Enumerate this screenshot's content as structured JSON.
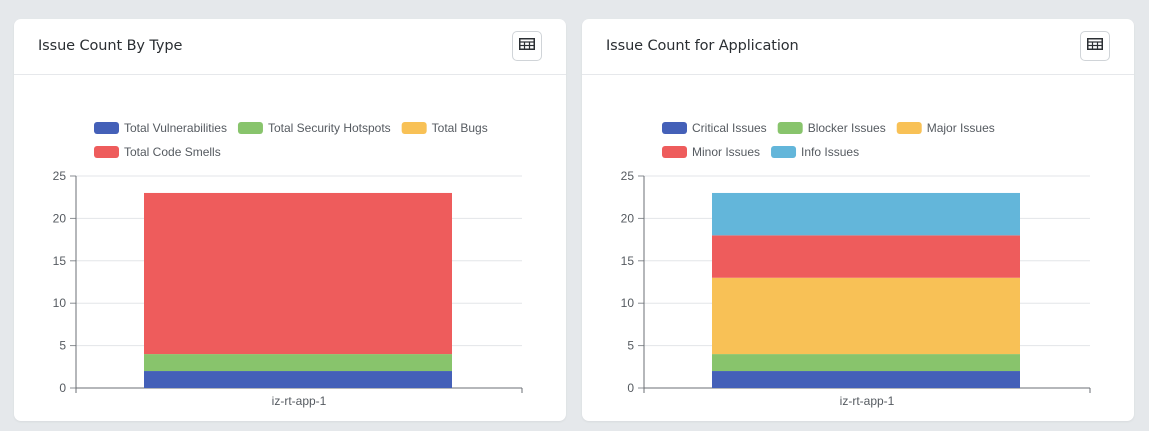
{
  "icons": {
    "table": "table-grid-icon"
  },
  "charts": [
    {
      "title": "Issue Count By Type",
      "table_button": "table-grid-icon"
    },
    {
      "title": "Issue Count for Application",
      "table_button": "table-grid-icon"
    }
  ],
  "chart_data": [
    {
      "type": "bar",
      "stacked": true,
      "title": "Issue Count By Type",
      "categories": [
        "iz-rt-app-1"
      ],
      "ylim": [
        0,
        25
      ],
      "yticks": [
        0,
        5,
        10,
        15,
        20,
        25
      ],
      "grid": true,
      "legend_position": "top",
      "series": [
        {
          "name": "Total Vulnerabilities",
          "values": [
            2
          ],
          "color": "#4460b8"
        },
        {
          "name": "Total Security Hotspots",
          "values": [
            2
          ],
          "color": "#88c46c"
        },
        {
          "name": "Total Bugs",
          "values": [
            0
          ],
          "color": "#f8c156"
        },
        {
          "name": "Total Code Smells",
          "values": [
            19
          ],
          "color": "#ee5c5c"
        }
      ]
    },
    {
      "type": "bar",
      "stacked": true,
      "title": "Issue Count for Application",
      "categories": [
        "iz-rt-app-1"
      ],
      "ylim": [
        0,
        25
      ],
      "yticks": [
        0,
        5,
        10,
        15,
        20,
        25
      ],
      "grid": true,
      "legend_position": "top",
      "series": [
        {
          "name": "Critical Issues",
          "values": [
            2
          ],
          "color": "#4460b8"
        },
        {
          "name": "Blocker Issues",
          "values": [
            2
          ],
          "color": "#88c46c"
        },
        {
          "name": "Major Issues",
          "values": [
            9
          ],
          "color": "#f8c156"
        },
        {
          "name": "Minor Issues",
          "values": [
            5
          ],
          "color": "#ee5c5c"
        },
        {
          "name": "Info Issues",
          "values": [
            5
          ],
          "color": "#63b6da"
        }
      ]
    }
  ]
}
